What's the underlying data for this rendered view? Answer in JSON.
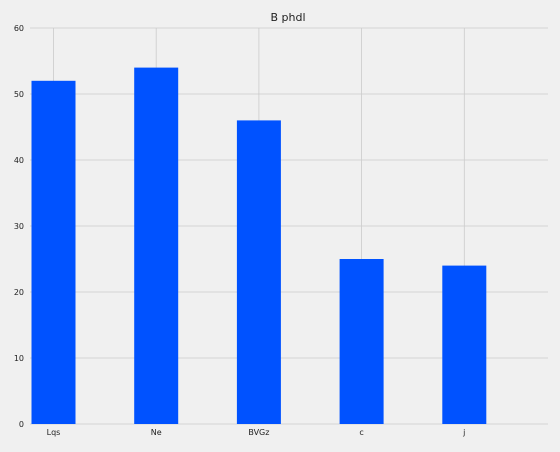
{
  "chart_data": {
    "type": "bar",
    "title": "B phdl",
    "xlabel": "",
    "ylabel": "",
    "categories": [
      "Lqs",
      "Ne",
      "BVGz",
      "c",
      "j"
    ],
    "values": [
      52,
      54,
      46,
      25,
      24
    ],
    "ylim": [
      0,
      60
    ],
    "yticks": [
      0,
      10,
      20,
      30,
      40,
      50,
      60
    ],
    "grid": true,
    "bar_color": "#0052ff",
    "background_color": "#f0f0f0",
    "grid_color": "#cbcbcb"
  }
}
